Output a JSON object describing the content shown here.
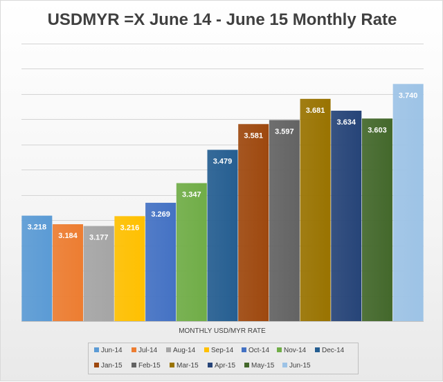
{
  "chart_data": {
    "type": "bar",
    "title": "USDMYR =X June 14 - June 15 Monthly Rate",
    "xlabel": "MONTHLY USD/MYR RATE",
    "ylabel": "",
    "ylim": [
      2.8,
      3.9
    ],
    "grid": true,
    "legend_position": "bottom",
    "categories": [
      "Jun-14",
      "Jul-14",
      "Aug-14",
      "Sep-14",
      "Oct-14",
      "Nov-14",
      "Dec-14",
      "Jan-15",
      "Feb-15",
      "Mar-15",
      "Apr-15",
      "May-15",
      "Jun-15"
    ],
    "values": [
      3.218,
      3.184,
      3.177,
      3.216,
      3.269,
      3.347,
      3.479,
      3.581,
      3.597,
      3.681,
      3.634,
      3.603,
      3.74
    ],
    "data_labels": [
      "3.218",
      "3.184",
      "3.177",
      "3.216",
      "3.269",
      "3.347",
      "3.479",
      "3.581",
      "3.597",
      "3.681",
      "3.634",
      "3.603",
      "3.740"
    ],
    "colors": [
      "#5b9bd5",
      "#ed7d31",
      "#a5a5a5",
      "#ffc000",
      "#4472c4",
      "#70ad47",
      "#255e91",
      "#9e480e",
      "#636363",
      "#997300",
      "#264478",
      "#43682b",
      "#9dc3e6"
    ]
  }
}
